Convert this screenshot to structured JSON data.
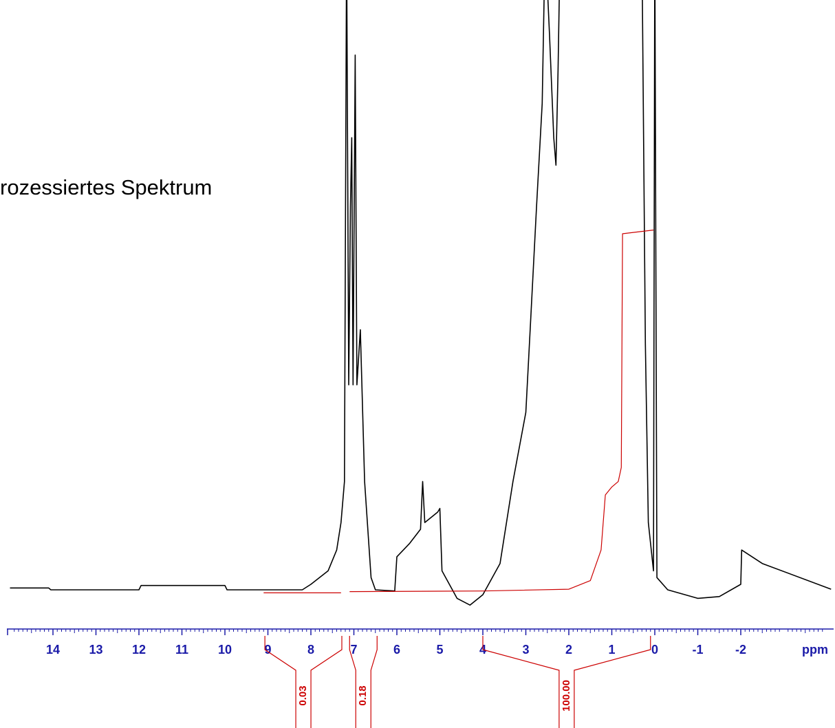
{
  "chart_data": {
    "type": "line",
    "annotation": "rozessiertes Spektrum",
    "x_label": "ppm",
    "xlim": [
      15.1,
      -4.1
    ],
    "ylim": [
      0,
      100
    ],
    "xticks": [
      14,
      13,
      12,
      11,
      10,
      9,
      8,
      7,
      6,
      5,
      4,
      3,
      2,
      1,
      0,
      -1,
      -2
    ],
    "series": [
      {
        "color": "#000000",
        "x": [
          15.0,
          14.1,
          14.05,
          12.0,
          11.95,
          10.0,
          9.95,
          8.2,
          8.0,
          7.6,
          7.4,
          7.3,
          7.22,
          7.17,
          7.12,
          7.08,
          7.05,
          7.02,
          6.97,
          6.93,
          6.85,
          6.75,
          6.6,
          6.5,
          6.05,
          6.0,
          5.7,
          5.45,
          5.4,
          5.35,
          5.05,
          5.0,
          4.95,
          4.6,
          4.3,
          4.0,
          3.6,
          3.3,
          3.0,
          2.9,
          2.75,
          2.62,
          2.55,
          2.45,
          2.35,
          2.3,
          2.25,
          2.2,
          0.3,
          0.22,
          0.15,
          0.03,
          0.0,
          -0.05,
          -0.3,
          -1.0,
          -1.5,
          -2.0,
          -2.02,
          -2.5,
          -4.1
        ],
        "values": [
          3.9,
          3.9,
          3.6,
          3.6,
          4.3,
          4.3,
          3.6,
          3.6,
          4.5,
          6.7,
          10.1,
          14.6,
          21.3,
          110,
          37.1,
          66.3,
          77.5,
          37.1,
          91,
          37.1,
          46.1,
          21.3,
          5.6,
          3.6,
          3.4,
          9,
          11.2,
          13.5,
          21.3,
          14.6,
          16.3,
          16.9,
          6.7,
          2.2,
          1.1,
          2.8,
          7.9,
          21.3,
          32.6,
          46.1,
          66.3,
          83.1,
          110,
          94.4,
          77.5,
          73,
          88.8,
          110,
          110,
          43.8,
          14.6,
          6.7,
          110,
          5.6,
          3.6,
          2.2,
          2.5,
          4.5,
          10.1,
          7.9,
          3.7
        ]
      },
      {
        "color": "#cc0000",
        "x": [
          9.1,
          7.3,
          7.2,
          7.1,
          4.0,
          2.0,
          1.5,
          1.25,
          1.15,
          1.0,
          0.85,
          0.78,
          0.75,
          0.03
        ],
        "values": [
          3.1,
          3.1,
          null,
          3.3,
          3.4,
          3.7,
          5.1,
          10.1,
          19.1,
          20.4,
          21.3,
          23.6,
          61.8,
          62.4
        ]
      }
    ],
    "integrals": {
      "ranges": [
        [
          9.07,
          7.28
        ],
        [
          7.1,
          6.46
        ],
        [
          4.0,
          0.1
        ]
      ],
      "values": [
        0.03,
        0.18,
        100
      ],
      "value_labels": [
        "0.03",
        "0.18",
        "100.00"
      ]
    }
  }
}
